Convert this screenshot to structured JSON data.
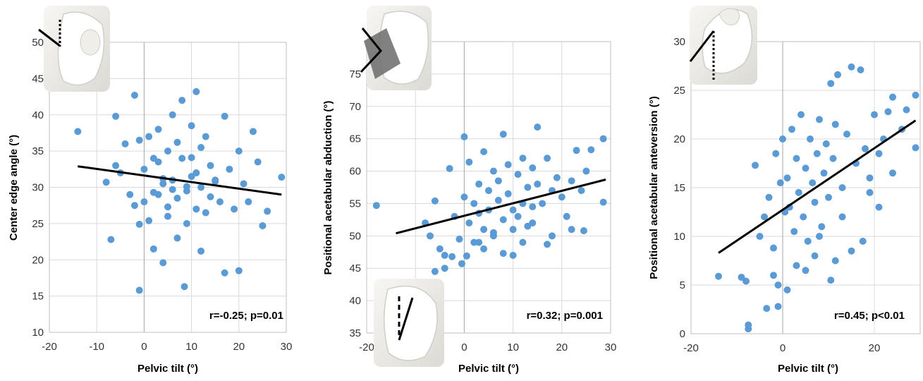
{
  "chart_data": [
    {
      "type": "scatter",
      "xlabel": "Pelvic tilt (°)",
      "ylabel": "Center edge angle (°)",
      "xlim": [
        -20,
        30
      ],
      "ylim": [
        10,
        50
      ],
      "xticks": [
        "-20",
        "-10",
        "0",
        "10",
        "20",
        "30"
      ],
      "yticks": [
        "10",
        "15",
        "20",
        "25",
        "30",
        "35",
        "40",
        "45",
        "50"
      ],
      "annotation": "r=-0.25; p=0.01",
      "trendline": {
        "x": [
          -14,
          29
        ],
        "y": [
          32.9,
          29.0
        ]
      },
      "point_color": "#5B9BD5",
      "x": [
        -14.0,
        -8.0,
        -7.0,
        -6.0,
        -6.0,
        -5.0,
        -4.0,
        -3.0,
        -2.0,
        -2.0,
        -1.0,
        -1.0,
        0.0,
        0.0,
        1.0,
        1.0,
        2.0,
        2.0,
        3.0,
        3.0,
        4.0,
        4.0,
        5.0,
        5.0,
        6.0,
        6.0,
        7.0,
        7.0,
        8.0,
        8.0,
        9.0,
        9.0,
        10.0,
        10.0,
        11.0,
        11.0,
        12.0,
        12.0,
        13.0,
        13.0,
        14.0,
        15.0,
        16.0,
        17.0,
        18.0,
        19.0,
        20.0,
        21.0,
        22.0,
        23.0,
        24.0,
        25.0,
        26.0,
        29.0,
        -1.0,
        8.5,
        17.0,
        20.0,
        12.0,
        2.0,
        4.0,
        6.0,
        9.0,
        11.0,
        14.0,
        3.0,
        5.0,
        7.0,
        10.0,
        15.0
      ],
      "y": [
        37.7,
        30.7,
        22.8,
        39.8,
        33.0,
        32.0,
        36.0,
        29.0,
        42.7,
        27.5,
        36.5,
        24.9,
        32.5,
        28.0,
        37.0,
        25.4,
        34.0,
        21.5,
        38.0,
        29.0,
        30.5,
        19.6,
        35.0,
        26.0,
        40.0,
        31.0,
        28.5,
        23.0,
        42.0,
        34.0,
        29.5,
        25.0,
        38.5,
        31.5,
        43.2,
        27.0,
        35.5,
        30.0,
        37.0,
        26.5,
        33.0,
        31.0,
        28.0,
        39.8,
        32.5,
        27.0,
        35.0,
        30.5,
        28.0,
        37.7,
        33.5,
        24.7,
        26.7,
        31.4,
        15.8,
        16.3,
        18.2,
        18.5,
        21.2,
        29.3,
        31.2,
        29.7,
        30.1,
        32.0,
        28.7,
        33.5,
        27.3,
        36.2,
        34.1,
        30.8
      ]
    },
    {
      "type": "scatter",
      "xlabel": "Pelvic tilt (°)",
      "ylabel": "Positional acetabular abduction (°)",
      "xlim": [
        -20,
        30
      ],
      "ylim": [
        35,
        80
      ],
      "xticks": [
        "-20",
        "-10",
        "0",
        "10",
        "20",
        "30"
      ],
      "yticks": [
        "35",
        "40",
        "45",
        "50",
        "55",
        "60",
        "65",
        "70",
        "75"
      ],
      "annotation": "r=0.32; p=0.001",
      "trendline": {
        "x": [
          -14,
          29
        ],
        "y": [
          50.4,
          58.7
        ]
      },
      "point_color": "#5B9BD5",
      "x": [
        -18.0,
        -8.0,
        -7.0,
        -6.0,
        -5.0,
        -4.0,
        -3.0,
        -2.0,
        -1.0,
        0.0,
        0.0,
        1.0,
        1.0,
        2.0,
        2.0,
        3.0,
        3.0,
        4.0,
        4.0,
        5.0,
        5.0,
        6.0,
        6.0,
        7.0,
        7.0,
        8.0,
        8.0,
        9.0,
        9.0,
        10.0,
        10.0,
        11.0,
        11.0,
        12.0,
        12.0,
        13.0,
        13.0,
        14.0,
        14.0,
        15.0,
        15.0,
        16.0,
        17.0,
        18.0,
        19.0,
        20.0,
        21.0,
        22.0,
        23.0,
        24.0,
        25.0,
        26.0,
        28.5,
        28.5,
        -0.5,
        0.5,
        4.0,
        8.0,
        12.0,
        17.0,
        -2.5,
        -4.0,
        -6.0,
        3.0,
        6.0,
        10.0,
        14.0,
        18.0,
        22.0,
        24.5
      ],
      "y": [
        54.7,
        52.0,
        50.0,
        55.4,
        48.0,
        47.0,
        60.4,
        53.0,
        49.5,
        65.3,
        56.0,
        52.0,
        61.4,
        55.0,
        49.0,
        58.0,
        53.5,
        63.0,
        51.0,
        57.0,
        54.0,
        60.0,
        50.5,
        55.5,
        58.5,
        65.7,
        52.5,
        61.0,
        56.5,
        54.0,
        47.0,
        59.5,
        53.0,
        62.0,
        55.0,
        57.5,
        51.5,
        60.5,
        54.5,
        66.8,
        58.0,
        55.0,
        62.0,
        57.0,
        59.0,
        56.0,
        53.0,
        58.5,
        63.2,
        57.0,
        60.0,
        63.3,
        65.0,
        55.2,
        45.7,
        46.9,
        48.0,
        47.3,
        49.0,
        48.7,
        46.8,
        45.0,
        44.5,
        49.0,
        50.0,
        51.0,
        52.0,
        50.0,
        51.0,
        50.8
      ]
    },
    {
      "type": "scatter",
      "xlabel": "Pelvic tilt (°)",
      "ylabel": "Positional acetabular anteversion  (°)",
      "xlim": [
        -20,
        30
      ],
      "ylim": [
        0,
        30
      ],
      "xticks": [
        "-20",
        "0",
        "20"
      ],
      "yticks": [
        "0",
        "5",
        "10",
        "15",
        "20",
        "25",
        "30"
      ],
      "annotation": "r=0.45; p<0.01",
      "trendline": {
        "x": [
          -14,
          29
        ],
        "y": [
          8.3,
          21.9
        ]
      },
      "point_color": "#5B9BD5",
      "x": [
        -14.0,
        -9.0,
        -8.0,
        -7.5,
        -7.5,
        -6.0,
        -5.0,
        -4.0,
        -3.5,
        -3.0,
        -2.0,
        -1.5,
        -1.0,
        -0.5,
        0.0,
        0.5,
        1.0,
        1.5,
        2.0,
        2.5,
        3.0,
        3.5,
        4.0,
        4.5,
        5.0,
        5.5,
        6.0,
        6.5,
        7.0,
        7.5,
        8.0,
        8.5,
        9.0,
        9.5,
        10.0,
        10.5,
        11.0,
        11.5,
        12.0,
        13.0,
        14.0,
        15.0,
        16.0,
        17.0,
        18.0,
        19.0,
        20.0,
        21.0,
        22.0,
        23.0,
        24.0,
        26.0,
        27.0,
        29.0,
        29.0,
        10.5,
        15.0,
        17.5,
        11.5,
        7.0,
        5.0,
        3.0,
        1.0,
        -1.0,
        -2.0,
        8.0,
        13.0,
        19.0,
        21.0,
        24.0
      ],
      "y": [
        5.9,
        5.8,
        5.4,
        0.9,
        0.5,
        17.3,
        10.0,
        12.0,
        2.6,
        14.0,
        8.8,
        18.5,
        2.8,
        15.5,
        20.0,
        12.5,
        16.0,
        13.0,
        21.0,
        10.5,
        18.0,
        14.5,
        22.5,
        12.0,
        17.0,
        9.5,
        20.0,
        15.5,
        13.5,
        18.5,
        22.0,
        11.0,
        16.5,
        19.5,
        14.0,
        25.7,
        18.0,
        21.5,
        26.6,
        15.0,
        20.5,
        27.4,
        17.5,
        27.1,
        19.0,
        16.0,
        22.5,
        18.5,
        20.0,
        22.8,
        24.3,
        21.0,
        23.0,
        24.5,
        19.1,
        5.5,
        8.5,
        9.5,
        7.5,
        8.0,
        6.5,
        7.0,
        4.5,
        5.0,
        6.0,
        10.0,
        12.0,
        14.5,
        13.0,
        16.5
      ]
    }
  ]
}
